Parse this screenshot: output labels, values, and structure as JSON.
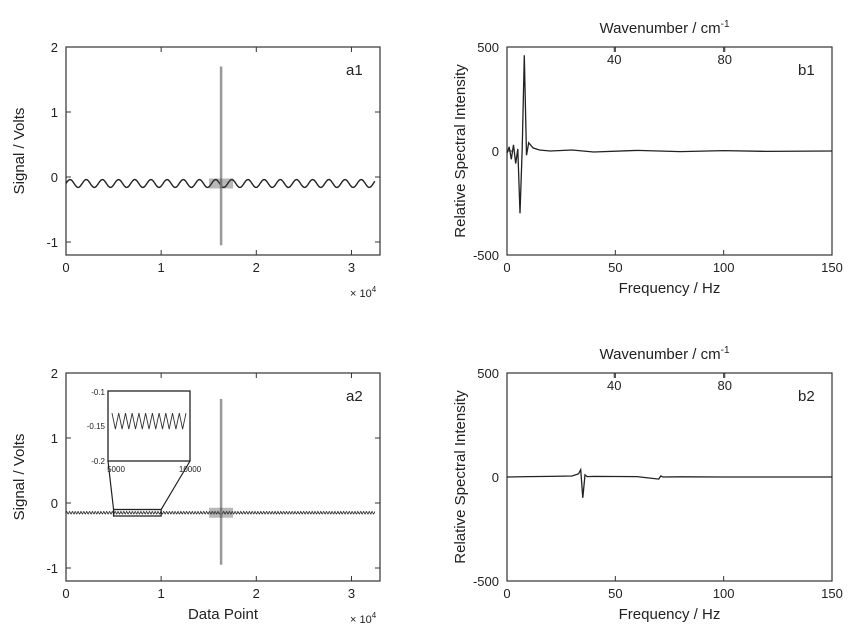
{
  "chart_data": [
    {
      "id": "a1",
      "type": "line",
      "panel_label": "a1",
      "ylabel": "Signal / Volts",
      "xlabel": "",
      "xlim": [
        0,
        33000
      ],
      "ylim": [
        -1.2,
        2
      ],
      "x_ticks": [
        0,
        1,
        2,
        3
      ],
      "y_ticks": [
        -1,
        0,
        1,
        2
      ],
      "x_multiplier": "× 10",
      "x_multiplier_exp": "4",
      "grid": false,
      "series": [
        {
          "x": [
            0,
            16300,
            16300,
            33000
          ],
          "y": [
            -0.1,
            -0.1,
            -0.1,
            -0.1
          ],
          "description": "oscillating trace around -0.1 V with spike at centre"
        }
      ],
      "center_burst": {
        "x": 16300,
        "y_min": -1.05,
        "y_max": 1.7
      }
    },
    {
      "id": "b1",
      "type": "line",
      "panel_label": "b1",
      "top_label": "Wavenumber / cm",
      "top_label_sup": "-1",
      "top_ticks": [
        "40",
        "80"
      ],
      "ylabel": "Relative Spectral Intensity",
      "xlabel": "Frequency / Hz",
      "xlim": [
        0,
        150
      ],
      "ylim": [
        -500,
        500
      ],
      "x_ticks": [
        0,
        50,
        100,
        150
      ],
      "y_ticks": [
        -500,
        0,
        500
      ],
      "grid": false,
      "series": [
        {
          "x": [
            0,
            1,
            2,
            3,
            4,
            5,
            6,
            7,
            8,
            9,
            10,
            12,
            15,
            20,
            30,
            40,
            60,
            80,
            100,
            120,
            150
          ],
          "y": [
            -10,
            20,
            -40,
            30,
            -60,
            10,
            -300,
            10,
            460,
            -20,
            40,
            15,
            5,
            0,
            5,
            -5,
            3,
            -3,
            2,
            -2,
            0
          ]
        }
      ]
    },
    {
      "id": "a2",
      "type": "line",
      "panel_label": "a2",
      "ylabel": "Signal / Volts",
      "xlabel": "Data Point",
      "xlim": [
        0,
        33000
      ],
      "ylim": [
        -1.2,
        2
      ],
      "x_ticks": [
        0,
        1,
        2,
        3
      ],
      "y_ticks": [
        -1,
        0,
        1,
        2
      ],
      "x_multiplier": "× 10",
      "x_multiplier_exp": "4",
      "grid": false,
      "series": [
        {
          "x": [
            0,
            33000
          ],
          "y": [
            -0.15,
            -0.15
          ],
          "description": "flat trace near -0.15 V with small ripple and spike at centre"
        }
      ],
      "center_burst": {
        "x": 16300,
        "y_min": -0.95,
        "y_max": 1.6
      },
      "inset": {
        "xlim": [
          5000,
          10000
        ],
        "ylim": [
          -0.2,
          -0.1
        ],
        "x_ticks": [
          "5000",
          "10000"
        ],
        "y_ticks": [
          "-0.1",
          "-0.15",
          "-0.2"
        ]
      }
    },
    {
      "id": "b2",
      "type": "line",
      "panel_label": "b2",
      "top_label": "Wavenumber / cm",
      "top_label_sup": "-1",
      "top_ticks": [
        "40",
        "80"
      ],
      "ylabel": "Relative Spectral Intensity",
      "xlabel": "Frequency / Hz",
      "xlim": [
        0,
        150
      ],
      "ylim": [
        -500,
        500
      ],
      "x_ticks": [
        0,
        50,
        100,
        150
      ],
      "y_ticks": [
        -500,
        0,
        500
      ],
      "grid": false,
      "series": [
        {
          "x": [
            0,
            10,
            20,
            30,
            33,
            34,
            35,
            36,
            37,
            40,
            60,
            70,
            71,
            72,
            80,
            100,
            150
          ],
          "y": [
            0,
            2,
            3,
            5,
            15,
            35,
            -100,
            10,
            2,
            3,
            2,
            -10,
            5,
            0,
            1,
            0,
            0
          ]
        }
      ]
    }
  ]
}
